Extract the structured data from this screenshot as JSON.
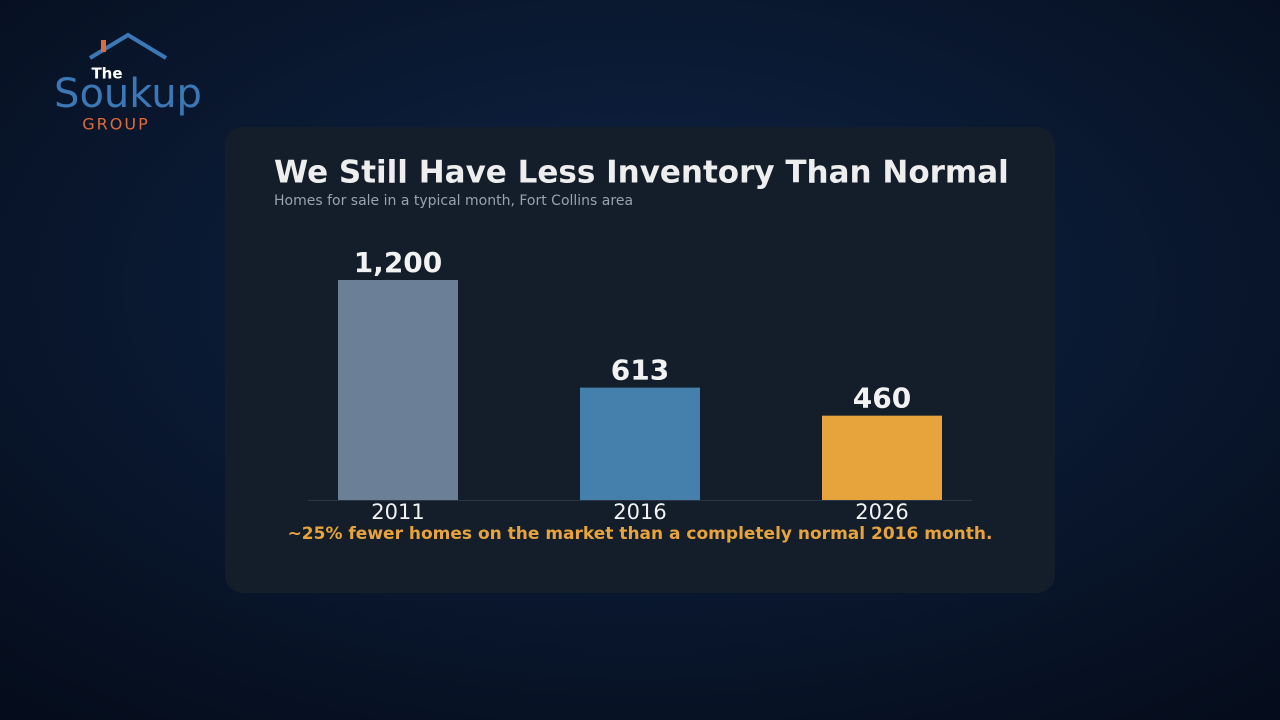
{
  "logo": {
    "line1": "The",
    "line2": "Soukup",
    "line3": "GROUP"
  },
  "chart_data": {
    "type": "bar",
    "title": "We Still Have Less Inventory Than Normal",
    "subtitle": "Homes for sale in a typical month, Fort Collins area",
    "categories": [
      "2011",
      "2016",
      "2026"
    ],
    "values": [
      1200,
      613,
      460
    ],
    "value_labels": [
      "1,200",
      "613",
      "460"
    ],
    "colors": [
      "#6b7f96",
      "#4580ad",
      "#e8a43c"
    ],
    "ylim": [
      0,
      1320
    ],
    "annotation": "~25% fewer homes on the market than a completely normal 2016 month."
  }
}
